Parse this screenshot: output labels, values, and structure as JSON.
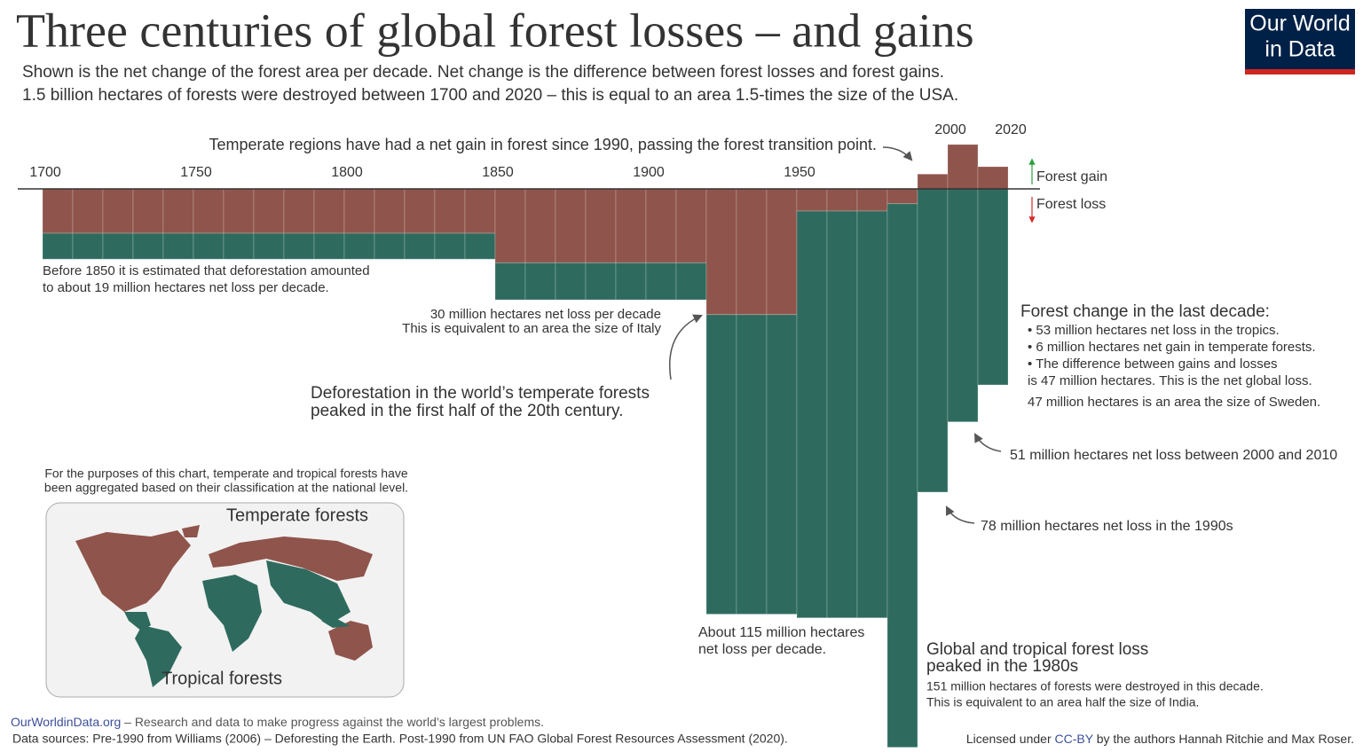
{
  "header": {
    "title": "Three centuries of global forest losses – and gains",
    "subtitle": [
      "Shown is the net change of the forest area per decade. Net change is the difference between forest losses and forest gains.",
      "1.5 billion hectares of forests were destroyed between 1700 and 2020 – this is equal to an area 1.5-times the size of the USA."
    ],
    "logo": [
      "Our World",
      "in Data"
    ]
  },
  "chart_data": {
    "type": "bar",
    "stacked": true,
    "x": [
      1700,
      1710,
      1720,
      1730,
      1740,
      1750,
      1760,
      1770,
      1780,
      1790,
      1800,
      1810,
      1820,
      1830,
      1840,
      1850,
      1860,
      1870,
      1880,
      1890,
      1900,
      1910,
      1920,
      1930,
      1940,
      1950,
      1960,
      1970,
      1980,
      1990,
      2000,
      2010
    ],
    "xlim": [
      1700,
      2020
    ],
    "xticks": [
      1700,
      1750,
      1800,
      1850,
      1900,
      1950,
      2000,
      2020
    ],
    "ylim": [
      -152,
      14
    ],
    "series": [
      {
        "name": "Temperate forests",
        "color": "#8f544b",
        "values": [
          -12,
          -12,
          -12,
          -12,
          -12,
          -12,
          -12,
          -12,
          -12,
          -12,
          -12,
          -12,
          -12,
          -12,
          -12,
          -20,
          -20,
          -20,
          -20,
          -20,
          -20,
          -20,
          -34,
          -34,
          -34,
          -6,
          -6,
          -6,
          -4,
          4,
          12,
          6
        ]
      },
      {
        "name": "Tropical forests",
        "color": "#2e6b5e",
        "values": [
          -7,
          -7,
          -7,
          -7,
          -7,
          -7,
          -7,
          -7,
          -7,
          -7,
          -7,
          -7,
          -7,
          -7,
          -7,
          -10,
          -10,
          -10,
          -10,
          -10,
          -10,
          -10,
          -81,
          -81,
          -81,
          -110,
          -110,
          -110,
          -147,
          -82,
          -63,
          -53
        ]
      }
    ],
    "gain_label": "Forest gain",
    "loss_label": "Forest loss",
    "map_note": [
      "For the purposes of this chart, temperate and tropical forests have",
      "been aggregated based on their classification at the national level."
    ],
    "annotations": [
      [
        "Temperate regions have had a net gain in forest since 1990, passing the forest transition point."
      ],
      [
        "Before 1850 it is estimated that deforestation amounted",
        "to about 19 million hectares net loss per decade."
      ],
      [
        "30 million hectares net loss per decade",
        "This is equivalent to an area the size of Italy"
      ],
      [
        "Deforestation in the world’s temperate forests",
        "peaked in the first half of the 20th century."
      ],
      [
        "Forest change in the last decade:",
        "• 53 million hectares net loss in the tropics.",
        "• 6 million hectares net gain in temperate forests.",
        "• The difference between gains and losses",
        "is 47 million hectares. This is the net global loss.",
        "47 million hectares is an area the size of Sweden."
      ],
      [
        "51 million hectares net loss between 2000 and 2010"
      ],
      [
        "78 million hectares net loss in the 1990s"
      ],
      [
        "About 115 million hectares",
        "net loss per decade."
      ],
      [
        "Global and tropical forest loss",
        "peaked in the 1980s",
        "151 million hectares of forests were destroyed in this decade.",
        "This is equivalent to an area half the size of India."
      ]
    ]
  },
  "footer": {
    "site": "OurWorldinData.org",
    "tagline": "– Research and data to make progress against the world’s largest problems.",
    "sources": "Data sources: Pre-1990 from Williams (2006) – Deforesting the Earth. Post-1990 from UN FAO Global Forest Resources Assessment (2020).",
    "license": [
      "Licensed under",
      "CC-BY",
      "by the authors Hannah Ritchie and Max Roser."
    ]
  }
}
